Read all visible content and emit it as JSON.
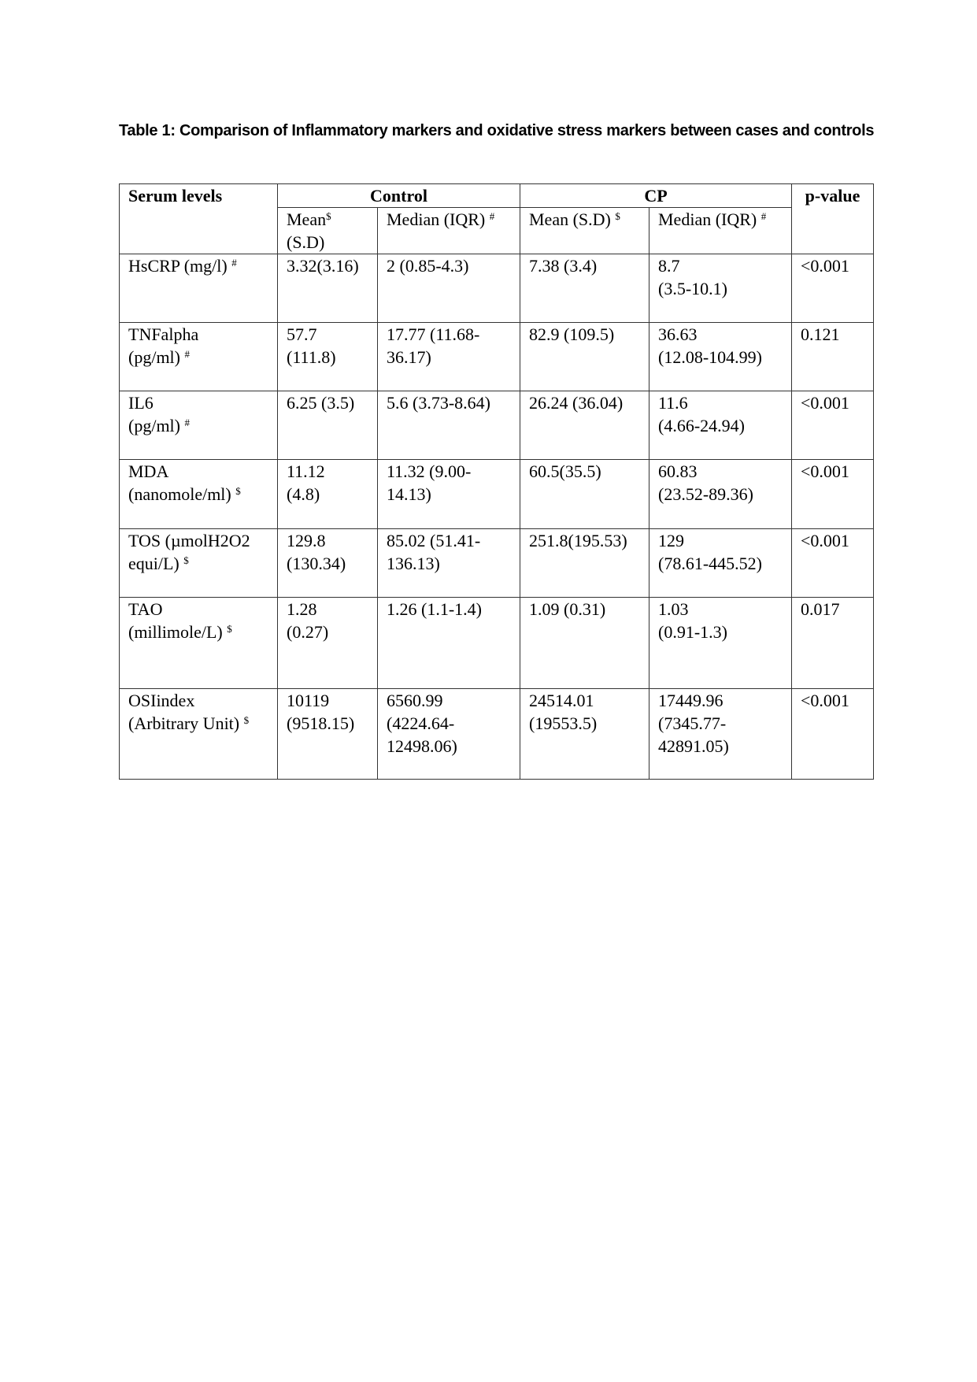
{
  "title": "Table 1: Comparison of Inflammatory markers and oxidative stress markers between cases and controls",
  "table": {
    "header": {
      "serum_levels": "Serum levels",
      "control": "Control",
      "cp": "CP",
      "p_value": "p-value",
      "control_mean": "Mean",
      "control_mean_sup": "$",
      "control_mean_2": "(S.D)",
      "control_median": "Median (IQR)",
      "control_median_sup": "#",
      "cp_mean": "Mean (S.D)",
      "cp_mean_sup": "$",
      "cp_median": "Median (IQR)",
      "cp_median_sup": "#"
    },
    "rows": [
      {
        "label": [
          "HsCRP (mg/l)"
        ],
        "sup": "#",
        "c_mean": [
          "3.32(3.16)"
        ],
        "c_median": [
          "2 (0.85-4.3)"
        ],
        "cp_mean": [
          "7.38 (3.4)"
        ],
        "cp_median": [
          "8.7",
          "(3.5-10.1)"
        ],
        "p": "<0.001"
      },
      {
        "label": [
          "TNFalpha",
          "(pg/ml)"
        ],
        "sup": "#",
        "c_mean": [
          "57.7",
          "(111.8)"
        ],
        "c_median": [
          "17.77 (11.68-",
          "36.17)"
        ],
        "cp_mean": [
          "82.9 (109.5)"
        ],
        "cp_median": [
          "36.63",
          "(12.08-104.99)"
        ],
        "p": "0.121"
      },
      {
        "label": [
          "IL6",
          "(pg/ml)"
        ],
        "sup": "#",
        "c_mean": [
          "6.25 (3.5)"
        ],
        "c_median": [
          "5.6 (3.73-8.64)"
        ],
        "cp_mean": [
          "26.24 (36.04)"
        ],
        "cp_median": [
          "11.6",
          "(4.66-24.94)"
        ],
        "p": "<0.001"
      },
      {
        "label": [
          "MDA",
          "(nanomole/ml)"
        ],
        "sup": "$",
        "c_mean": [
          "11.12",
          "(4.8)"
        ],
        "c_median": [
          "11.32 (9.00-",
          "14.13)"
        ],
        "cp_mean": [
          "60.5(35.5)"
        ],
        "cp_median": [
          "60.83",
          "(23.52-89.36)"
        ],
        "p": "<0.001"
      },
      {
        "label": [
          "TOS (µmolH2O2",
          "equi/L)"
        ],
        "sup": "$",
        "c_mean": [
          "129.8",
          "(130.34)"
        ],
        "c_median": [
          "85.02 (51.41-",
          "136.13)"
        ],
        "cp_mean": [
          "251.8(195.53)"
        ],
        "cp_median": [
          "129",
          "(78.61-445.52)"
        ],
        "p": "<0.001"
      },
      {
        "label": [
          "TAO",
          "(millimole/L)"
        ],
        "sup": "$",
        "c_mean": [
          "1.28",
          "(0.27)"
        ],
        "c_median": [
          "1.26 (1.1-1.4)"
        ],
        "cp_mean": [
          "1.09 (0.31)"
        ],
        "cp_median": [
          "1.03",
          "(0.91-1.3)"
        ],
        "p": "0.017"
      },
      {
        "label": [
          "OSIindex",
          "(Arbitrary Unit)"
        ],
        "sup": "$",
        "c_mean": [
          "10119",
          "(9518.15)"
        ],
        "c_median": [
          "6560.99",
          "(4224.64-",
          "12498.06)"
        ],
        "cp_mean": [
          "24514.01",
          "(19553.5)"
        ],
        "cp_median": [
          "17449.96",
          "(7345.77-",
          "42891.05)"
        ],
        "p": "<0.001"
      }
    ]
  }
}
